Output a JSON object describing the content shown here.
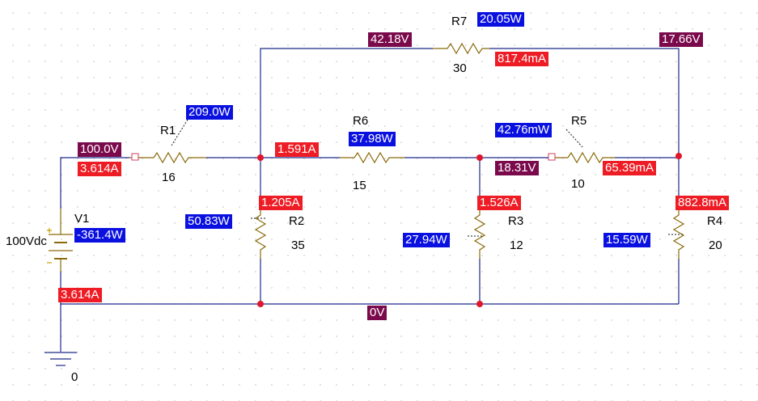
{
  "components": {
    "r1": {
      "name": "R1",
      "value": "16"
    },
    "r2": {
      "name": "R2",
      "value": "35"
    },
    "r3": {
      "name": "R3",
      "value": "12"
    },
    "r4": {
      "name": "R4",
      "value": "20"
    },
    "r5": {
      "name": "R5",
      "value": "10"
    },
    "r6": {
      "name": "R6",
      "value": "15"
    },
    "r7": {
      "name": "R7",
      "value": "30"
    },
    "v1": {
      "name": "V1",
      "value": "100Vdc"
    },
    "ground": {
      "name": "0"
    }
  },
  "voltages": {
    "top_left": "42.18V",
    "top_right": "17.66V",
    "source": "100.0V",
    "r5_node": "18.31V",
    "ground": "0V"
  },
  "currents": {
    "r7": "817.4mA",
    "r1": "3.614A",
    "r6": "1.591A",
    "r5": "65.39mA",
    "r2": "1.205A",
    "r3": "1.526A",
    "r4": "882.8mA",
    "source": "3.614A"
  },
  "powers": {
    "r7": "20.05W",
    "r1": "209.0W",
    "r6": "37.98W",
    "r5": "42.76mW",
    "r2": "50.83W",
    "r3": "27.94W",
    "r4": "15.59W",
    "v1": "-361.4W"
  },
  "colors": {
    "voltage_marker": "#7a0a4b",
    "current_marker": "#ee1c24",
    "power_marker": "#0a10e0",
    "wire": "#1f2a8a",
    "component": "#8a6a0a",
    "junction": "#e0162c"
  }
}
